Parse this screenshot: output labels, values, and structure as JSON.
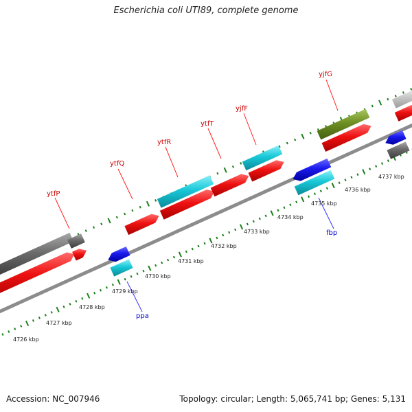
{
  "title": "Escherichia coli UTI89, complete genome",
  "footer": {
    "accession": "Accession: NC_007946",
    "summary": "Topology: circular; Length: 5,065,741 bp; Genes: 5,131"
  },
  "colors": {
    "backbone": "#8c8c8c",
    "tick": "#1a7f1a",
    "label_red": "#cc0000",
    "label_blue": "#0000cc",
    "red": "#ee1111",
    "cyan": "#18c8d8",
    "blue": "#1a1aee",
    "gray": "#6a6a6a",
    "olive": "#6e8f22",
    "light_gray": "#c8c8c8"
  },
  "kbp_labels": [
    "4726 kbp",
    "4727 kbp",
    "4728 kbp",
    "4729 kbp",
    "4730 kbp",
    "4731 kbp",
    "4732 kbp",
    "4733 kbp",
    "4734 kbp",
    "4735 kbp",
    "4736 kbp",
    "4737 kbp"
  ],
  "gene_labels_forward": [
    "ytfP",
    "ytfQ",
    "ytfR",
    "ytfT",
    "yjfF",
    "yjfG"
  ],
  "gene_labels_reverse": [
    "ppa",
    "fbp"
  ]
}
